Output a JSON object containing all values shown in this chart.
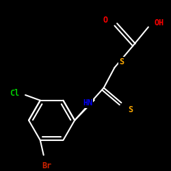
{
  "background": "#000000",
  "atom_colors": {
    "C": "#ffffff",
    "H": "#ffffff",
    "N": "#0000ff",
    "O": "#ff0000",
    "S": "#ffaa00",
    "Cl": "#00cc00",
    "Br": "#cc2200"
  },
  "bond_color": "#ffffff",
  "bond_width": 1.5,
  "font_size": 8.5,
  "fig_size": [
    2.5,
    2.5
  ],
  "dpi": 100
}
